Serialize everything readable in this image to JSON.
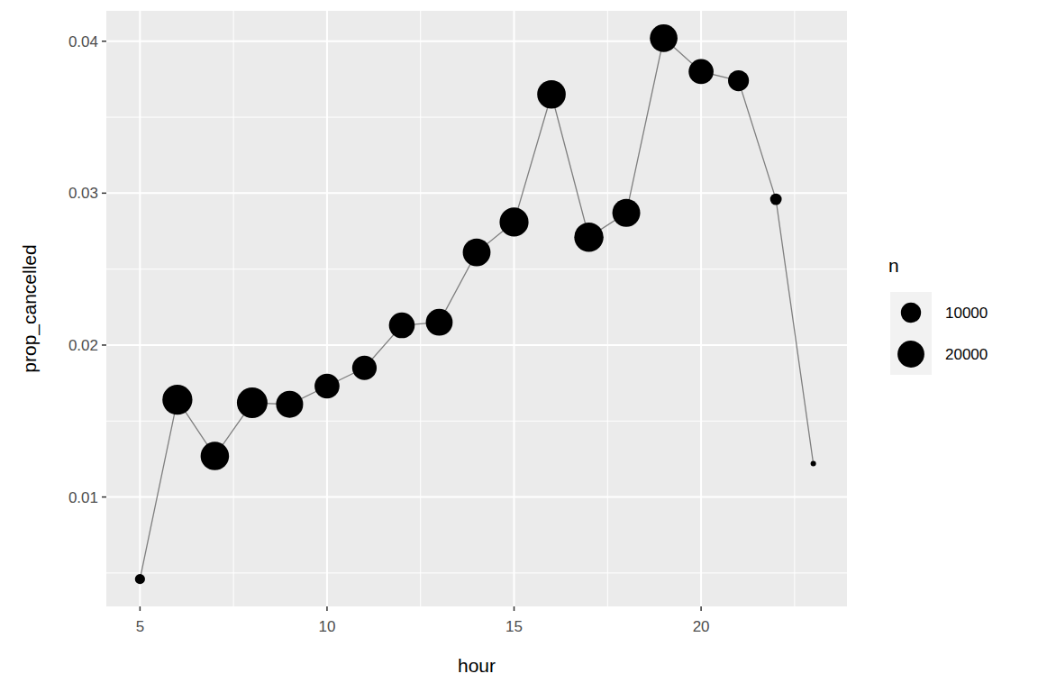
{
  "chart_data": {
    "type": "line",
    "x_label": "hour",
    "y_label": "prop_cancelled",
    "x": [
      5,
      6,
      7,
      8,
      9,
      10,
      11,
      12,
      13,
      14,
      15,
      16,
      17,
      18,
      19,
      20,
      21,
      22,
      23
    ],
    "series": [
      {
        "name": "prop_cancelled",
        "color": "#7f7f7f",
        "marker": "circle",
        "values": [
          0.0046,
          0.0164,
          0.0127,
          0.0162,
          0.0161,
          0.0173,
          0.0185,
          0.0213,
          0.0215,
          0.0261,
          0.0281,
          0.0365,
          0.0271,
          0.0287,
          0.0402,
          0.038,
          0.0374,
          0.0296,
          0.0122
        ],
        "sizes": [
          1953,
          25951,
          22821,
          27242,
          20312,
          16708,
          16033,
          18181,
          19956,
          21706,
          23888,
          23002,
          24426,
          21783,
          21441,
          16739,
          10933,
          2639,
          1061
        ]
      }
    ],
    "size_title": "n",
    "size_ticks": [
      10000,
      20000
    ],
    "xlim": [
      4.1,
      23.9
    ],
    "xticks": [
      5,
      10,
      15,
      20
    ],
    "ylim": [
      0.0028,
      0.042
    ],
    "yticks": [
      0.01,
      0.02,
      0.03,
      0.04
    ],
    "grid": true
  }
}
